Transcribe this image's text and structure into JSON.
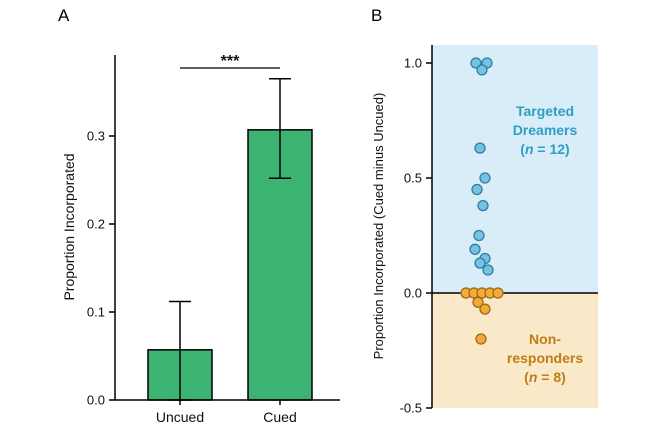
{
  "figure": {
    "background": "#ffffff"
  },
  "panels": {
    "a": {
      "label": "A"
    },
    "b": {
      "label": "B"
    }
  },
  "chart_data": [
    {
      "type": "bar",
      "panel": "A",
      "title": "",
      "xlabel": "",
      "ylabel": "Proportion Incorporated",
      "categories": [
        "Uncued",
        "Cued"
      ],
      "values": [
        0.057,
        0.307
      ],
      "error_low": [
        0.0,
        0.252
      ],
      "error_high": [
        0.112,
        0.365
      ],
      "yticks": [
        0.0,
        0.1,
        0.2,
        0.3
      ],
      "ylim": [
        0,
        0.39
      ],
      "grid": false,
      "significance_label": "***",
      "significance_between": [
        "Uncued",
        "Cued"
      ],
      "bar_color": "#3cb371",
      "bar_edge_color": "#000000",
      "axis_color": "#000000"
    },
    {
      "type": "scatter",
      "panel": "B",
      "title": "",
      "xlabel": "",
      "ylabel": "Proportion Incorporated (Cued minus Uncued)",
      "yticks": [
        1.0,
        0.5,
        0.0,
        -0.5
      ],
      "ylim": [
        -0.5,
        1.08
      ],
      "zero_line": 0.0,
      "grid": false,
      "axis_color": "#000000",
      "groups": [
        {
          "name": "Targeted Dreamers",
          "n": 12,
          "label_lines": [
            "Targeted",
            "Dreamers",
            "(n = 12)"
          ],
          "dot_color": "#74c3e4",
          "dot_edge_color": "#2f7ea0",
          "region_color": "#d9edf8",
          "text_color": "#2e9fc1",
          "values": [
            1.0,
            1.0,
            0.97,
            0.63,
            0.5,
            0.45,
            0.38,
            0.25,
            0.19,
            0.15,
            0.13,
            0.1
          ],
          "jitter": [
            -6,
            5,
            0,
            -2,
            3,
            -5,
            1,
            -3,
            -7,
            3,
            -2,
            6
          ]
        },
        {
          "name": "Non-responders",
          "n": 8,
          "label_lines": [
            "Non-",
            "responders",
            "(n = 8)"
          ],
          "dot_color": "#f4a93c",
          "dot_edge_color": "#9c6b10",
          "region_color": "#f9e9c8",
          "text_color": "#bf7d15",
          "values": [
            0.0,
            0.0,
            0.0,
            0.0,
            0.0,
            -0.04,
            -0.07,
            -0.2
          ],
          "jitter": [
            -16,
            -8,
            0,
            8,
            16,
            -4,
            3,
            -1
          ]
        }
      ]
    }
  ]
}
